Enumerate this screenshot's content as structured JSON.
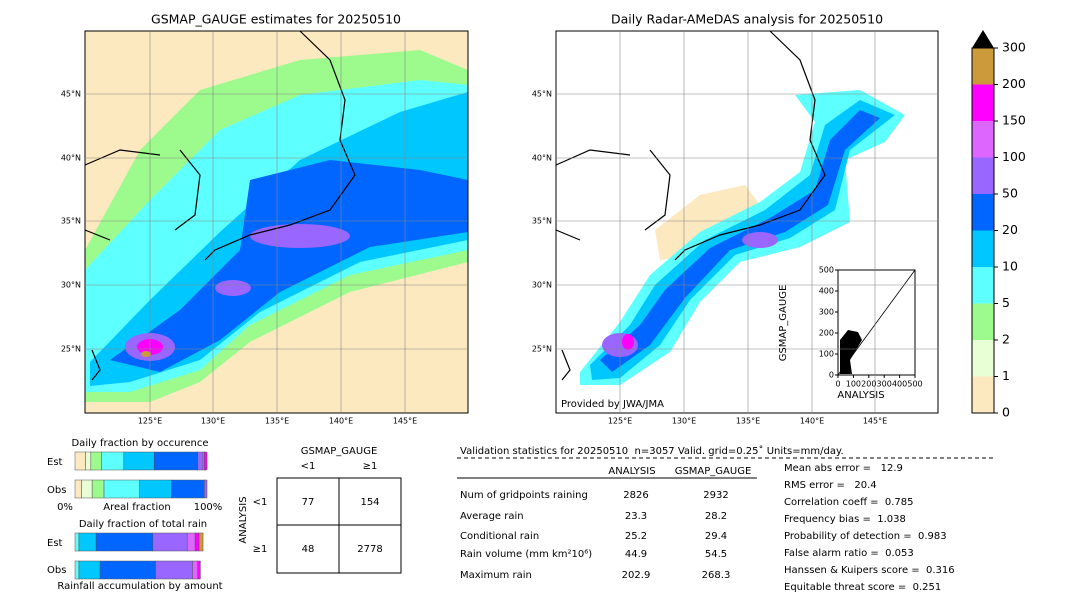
{
  "left_map": {
    "title": "GSMAP_GAUGE estimates for 20250510",
    "lat_labels": [
      "45°N",
      "40°N",
      "35°N",
      "30°N",
      "25°N"
    ],
    "lon_labels": [
      "125°E",
      "130°E",
      "135°E",
      "140°E",
      "145°E"
    ]
  },
  "right_map": {
    "title": "Daily Radar-AMeDAS analysis for 20250510",
    "credit": "Provided by JWA/JMA",
    "lat_labels": [
      "45°N",
      "40°N",
      "35°N",
      "30°N",
      "25°N"
    ],
    "lon_labels": [
      "125°E",
      "130°E",
      "135°E",
      "140°E",
      "145°E"
    ],
    "inset": {
      "xlabel": "ANALYSIS",
      "ylabel": "GSMAP_GAUGE",
      "xticks": [
        0,
        100,
        200,
        300,
        400,
        500
      ],
      "yticks": [
        0,
        100,
        200,
        300,
        400,
        500
      ]
    }
  },
  "colorbar": {
    "ticks": [
      0,
      1,
      2,
      5,
      10,
      20,
      50,
      100,
      150,
      200,
      300
    ],
    "colors": [
      "#fde9c0",
      "#e8ffd6",
      "#9dfb8e",
      "#5effff",
      "#00c8ff",
      "#0066ff",
      "#9966ff",
      "#dd66ff",
      "#ff00ff",
      "#cc9a3a"
    ]
  },
  "fractions": {
    "occurrence_title": "Daily fraction by occurence",
    "rows": [
      "Est",
      "Obs"
    ],
    "axis_left": "0%",
    "axis_mid": "Areal fraction",
    "axis_right": "100%",
    "total_title": "Daily fraction of total rain",
    "total_rows": [
      "Est",
      "Obs"
    ],
    "accumulation_label": "Rainfall accumulation by amount"
  },
  "contingency": {
    "title": "GSMAP_GAUGE",
    "col_labels": [
      "<1",
      "≥1"
    ],
    "row_title": "ANALYSIS",
    "row_labels": [
      "<1",
      "≥1"
    ],
    "cells": [
      [
        77,
        154
      ],
      [
        48,
        2778
      ]
    ]
  },
  "validation": {
    "header": "Validation statistics for 20250510  n=3057 Valid. grid=0.25˚ Units=mm/day.",
    "columns": [
      "ANALYSIS",
      "GSMAP_GAUGE"
    ],
    "rows": [
      {
        "label": "Num of gridpoints raining",
        "analysis": 2826,
        "gsmap": 2932
      },
      {
        "label": "Average rain",
        "analysis": 23.3,
        "gsmap": 28.2
      },
      {
        "label": "Conditional rain",
        "analysis": 25.2,
        "gsmap": 29.4
      },
      {
        "label": "Rain volume (mm km²10⁶)",
        "analysis": 44.9,
        "gsmap": 54.5
      },
      {
        "label": "Maximum rain",
        "analysis": 202.9,
        "gsmap": 268.3
      }
    ],
    "scores": [
      "Mean abs error =   12.9",
      "RMS error =   20.4",
      "Correlation coeff =  0.785",
      "Frequency bias =  1.038",
      "Probability of detection =  0.983",
      "False alarm ratio =  0.053",
      "Hanssen & Kuipers score =  0.316",
      "Equitable threat score =  0.251"
    ]
  }
}
